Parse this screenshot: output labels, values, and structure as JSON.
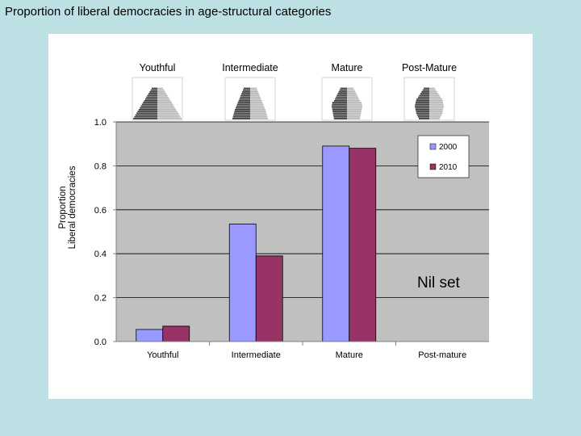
{
  "title": "Proportion of liberal democracies in age-structural categories",
  "chart_data": {
    "type": "bar",
    "title": "Proportion of liberal democracies in age-structural categories",
    "ylabel": "Proportion Liberal democracies",
    "ylabel_lines": [
      "Proportion",
      "Liberal democracies"
    ],
    "xlabel": "",
    "ylim": [
      0,
      1.0
    ],
    "yticks": [
      "0.0",
      "0.2",
      "0.4",
      "0.6",
      "0.8",
      "1.0"
    ],
    "categories": [
      "Youthful",
      "Intermediate",
      "Mature",
      "Post-mature"
    ],
    "series": [
      {
        "name": "2000",
        "color": "#9999ff",
        "values": [
          0.055,
          0.535,
          0.89,
          null
        ]
      },
      {
        "name": "2010",
        "color": "#993366",
        "values": [
          0.07,
          0.39,
          0.88,
          null
        ]
      }
    ],
    "legend_position": "top-right",
    "annotation": "Nil set",
    "pyramid_labels": [
      "Youthful",
      "Intermediate",
      "Mature",
      "Post-Mature"
    ],
    "plot_background": "#c0c0c0",
    "grid": true
  }
}
